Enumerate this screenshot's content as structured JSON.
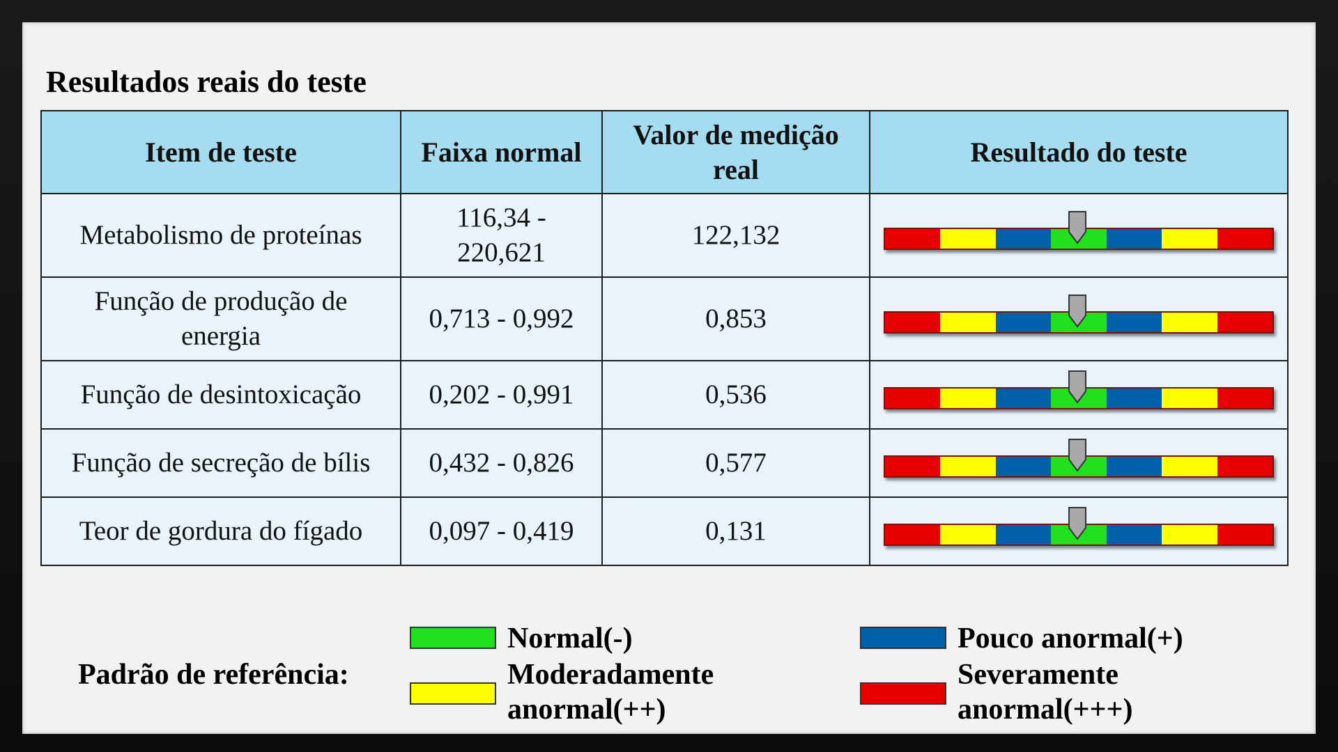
{
  "title": "Resultados reais do teste",
  "table": {
    "headers": [
      "Item de teste",
      "Faixa normal",
      "Valor de medição real",
      "Resultado do teste"
    ],
    "rows": [
      {
        "item": "Metabolismo de proteínas",
        "range": "116,34 - 220,621",
        "value": "122,132",
        "level": "Normal(-)"
      },
      {
        "item": "Função de produção de energia",
        "range": "0,713 - 0,992",
        "value": "0,853",
        "level": "Normal(-)"
      },
      {
        "item": "Função de desintoxicação",
        "range": "0,202 - 0,991",
        "value": "0,536",
        "level": "Normal(-)"
      },
      {
        "item": "Função de secreção de bílis",
        "range": "0,432 - 0,826",
        "value": "0,577",
        "level": "Normal(-)"
      },
      {
        "item": "Teor de gordura do fígado",
        "range": "0,097 - 0,419",
        "value": "0,131",
        "level": "Normal(-)"
      }
    ]
  },
  "gauge_scale": [
    "red",
    "yellow",
    "blue",
    "green",
    "blue",
    "yellow",
    "red"
  ],
  "colors": {
    "red": "#e80000",
    "yellow": "#ffff00",
    "blue": "#0060a8",
    "green": "#20e020",
    "header_bg": "#a6dcf0",
    "row_bg": "#e8f4fa",
    "pointer": "#a8a8a8"
  },
  "legend": {
    "label": "Padrão de referência:",
    "items": [
      {
        "color": "green",
        "text": "Normal(-)"
      },
      {
        "color": "blue",
        "text": "Pouco anormal(+)"
      },
      {
        "color": "yellow",
        "text": "Moderadamente anormal(++)"
      },
      {
        "color": "red",
        "text": "Severamente anormal(+++)"
      }
    ]
  }
}
